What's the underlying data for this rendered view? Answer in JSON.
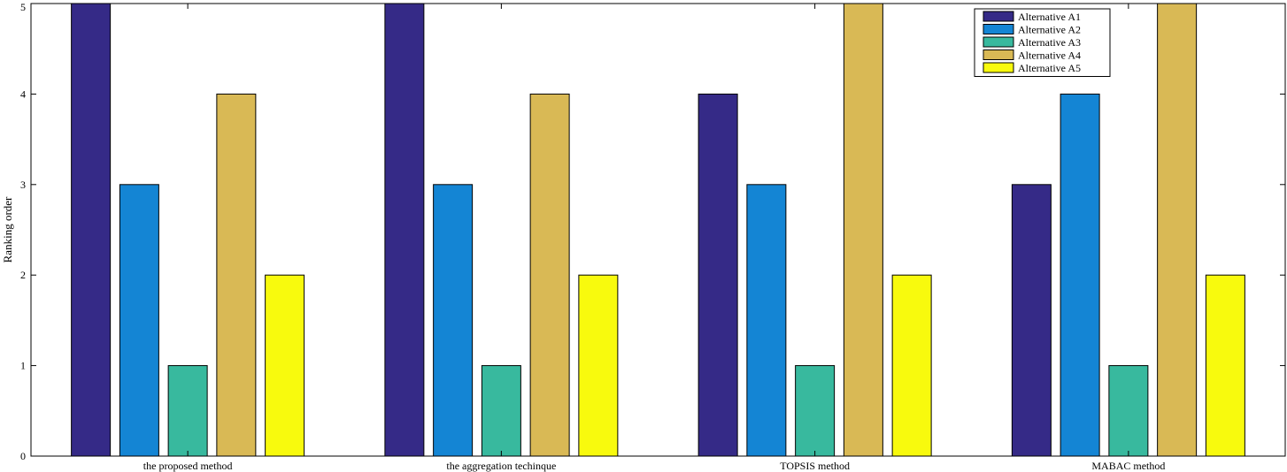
{
  "chart_data": {
    "type": "bar",
    "ylabel": "Ranking order",
    "xlabel": "",
    "ylim": [
      0,
      5
    ],
    "yticks": [
      "0",
      "1",
      "2",
      "3",
      "4",
      "5"
    ],
    "categories": [
      "the proposed method",
      "the aggregation techinque",
      "TOPSIS method",
      "MABAC method"
    ],
    "series": [
      {
        "name": "Alternative A1",
        "color": "#352A87",
        "values": [
          5,
          5,
          4,
          3
        ]
      },
      {
        "name": "Alternative A2",
        "color": "#1485D4",
        "values": [
          3,
          3,
          3,
          4
        ]
      },
      {
        "name": "Alternative A3",
        "color": "#38B99E",
        "values": [
          1,
          1,
          1,
          1
        ]
      },
      {
        "name": "Alternative A4",
        "color": "#D9B955",
        "values": [
          4,
          4,
          5,
          5
        ]
      },
      {
        "name": "Alternative A5",
        "color": "#F8FA0D",
        "values": [
          2,
          2,
          2,
          2
        ]
      }
    ],
    "grid": false,
    "legend_position": "top-right"
  }
}
